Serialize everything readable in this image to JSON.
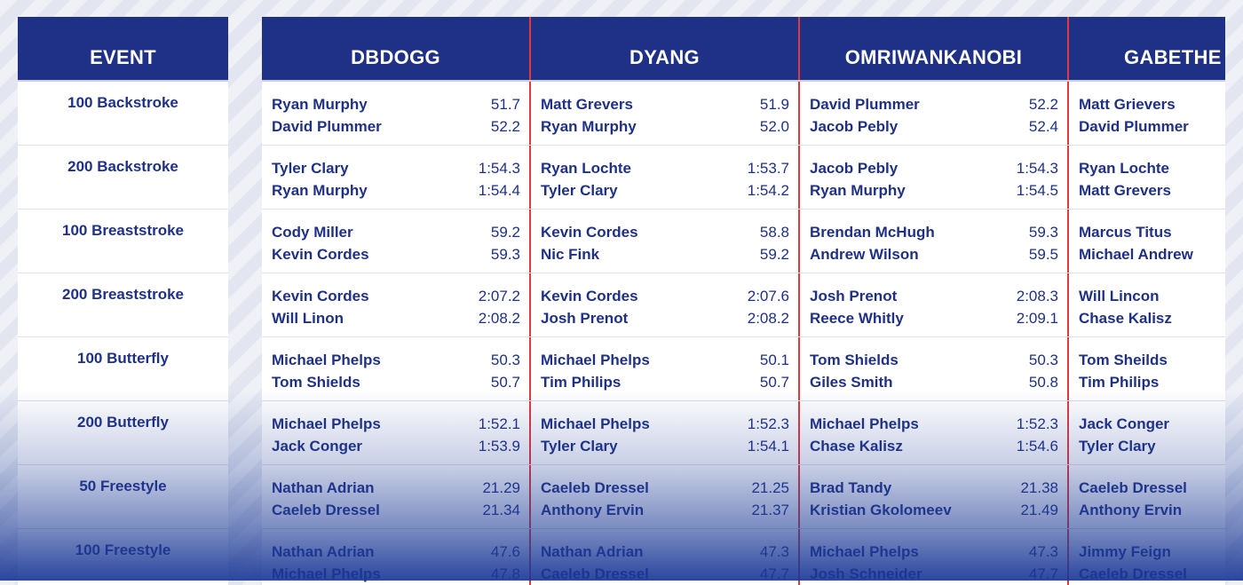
{
  "header": {
    "event_label": "EVENT"
  },
  "players": [
    "DBDOGG",
    "DYANG",
    "OMRIWANKANOBI",
    "GABETHE"
  ],
  "events": [
    {
      "name": "100 Backstroke",
      "picks": [
        [
          {
            "name": "Ryan Murphy",
            "time": "51.7"
          },
          {
            "name": "David Plummer",
            "time": "52.2"
          }
        ],
        [
          {
            "name": "Matt Grevers",
            "time": "51.9"
          },
          {
            "name": "Ryan Murphy",
            "time": "52.0"
          }
        ],
        [
          {
            "name": "David Plummer",
            "time": "52.2"
          },
          {
            "name": "Jacob Pebly",
            "time": "52.4"
          }
        ],
        [
          {
            "name": "Matt Grievers",
            "time": ""
          },
          {
            "name": "David Plummer",
            "time": ""
          }
        ]
      ]
    },
    {
      "name": "200 Backstroke",
      "picks": [
        [
          {
            "name": "Tyler Clary",
            "time": "1:54.3"
          },
          {
            "name": "Ryan Murphy",
            "time": "1:54.4"
          }
        ],
        [
          {
            "name": "Ryan Lochte",
            "time": "1:53.7"
          },
          {
            "name": "Tyler Clary",
            "time": "1:54.2"
          }
        ],
        [
          {
            "name": "Jacob Pebly",
            "time": "1:54.3"
          },
          {
            "name": "Ryan Murphy",
            "time": "1:54.5"
          }
        ],
        [
          {
            "name": "Ryan Lochte",
            "time": ""
          },
          {
            "name": "Matt Grevers",
            "time": ""
          }
        ]
      ]
    },
    {
      "name": "100 Breaststroke",
      "picks": [
        [
          {
            "name": "Cody Miller",
            "time": "59.2"
          },
          {
            "name": "Kevin Cordes",
            "time": "59.3"
          }
        ],
        [
          {
            "name": "Kevin Cordes",
            "time": "58.8"
          },
          {
            "name": "Nic Fink",
            "time": "59.2"
          }
        ],
        [
          {
            "name": "Brendan McHugh",
            "time": "59.3"
          },
          {
            "name": "Andrew Wilson",
            "time": "59.5"
          }
        ],
        [
          {
            "name": "Marcus Titus",
            "time": ""
          },
          {
            "name": "Michael Andrew",
            "time": ""
          }
        ]
      ]
    },
    {
      "name": "200 Breaststroke",
      "picks": [
        [
          {
            "name": "Kevin Cordes",
            "time": "2:07.2"
          },
          {
            "name": "Will Linon",
            "time": "2:08.2"
          }
        ],
        [
          {
            "name": "Kevin Cordes",
            "time": "2:07.6"
          },
          {
            "name": "Josh Prenot",
            "time": "2:08.2"
          }
        ],
        [
          {
            "name": "Josh Prenot",
            "time": "2:08.3"
          },
          {
            "name": "Reece Whitly",
            "time": "2:09.1"
          }
        ],
        [
          {
            "name": "Will Lincon",
            "time": ""
          },
          {
            "name": "Chase Kalisz",
            "time": ""
          }
        ]
      ]
    },
    {
      "name": "100 Butterfly",
      "picks": [
        [
          {
            "name": "Michael Phelps",
            "time": "50.3"
          },
          {
            "name": "Tom Shields",
            "time": "50.7"
          }
        ],
        [
          {
            "name": "Michael Phelps",
            "time": "50.1"
          },
          {
            "name": "Tim Philips",
            "time": "50.7"
          }
        ],
        [
          {
            "name": "Tom Shields",
            "time": "50.3"
          },
          {
            "name": "Giles Smith",
            "time": "50.8"
          }
        ],
        [
          {
            "name": "Tom Sheilds",
            "time": ""
          },
          {
            "name": "Tim Philips",
            "time": ""
          }
        ]
      ]
    },
    {
      "name": "200 Butterfly",
      "picks": [
        [
          {
            "name": "Michael Phelps",
            "time": "1:52.1"
          },
          {
            "name": "Jack Conger",
            "time": "1:53.9"
          }
        ],
        [
          {
            "name": "Michael Phelps",
            "time": "1:52.3"
          },
          {
            "name": "Tyler Clary",
            "time": "1:54.1"
          }
        ],
        [
          {
            "name": "Michael Phelps",
            "time": "1:52.3"
          },
          {
            "name": "Chase Kalisz",
            "time": "1:54.6"
          }
        ],
        [
          {
            "name": "Jack Conger",
            "time": ""
          },
          {
            "name": "Tyler Clary",
            "time": ""
          }
        ]
      ]
    },
    {
      "name": "50 Freestyle",
      "picks": [
        [
          {
            "name": "Nathan Adrian",
            "time": "21.29"
          },
          {
            "name": "Caeleb Dressel",
            "time": "21.34"
          }
        ],
        [
          {
            "name": "Caeleb Dressel",
            "time": "21.25"
          },
          {
            "name": "Anthony Ervin",
            "time": "21.37"
          }
        ],
        [
          {
            "name": "Brad Tandy",
            "time": "21.38"
          },
          {
            "name": "Kristian Gkolomeev",
            "time": "21.49"
          }
        ],
        [
          {
            "name": "Caeleb Dressel",
            "time": ""
          },
          {
            "name": "Anthony Ervin",
            "time": ""
          }
        ]
      ]
    },
    {
      "name": "100 Freestyle",
      "picks": [
        [
          {
            "name": "Nathan Adrian",
            "time": "47.6"
          },
          {
            "name": "Michael Phelps",
            "time": "47.8"
          }
        ],
        [
          {
            "name": "Nathan Adrian",
            "time": "47.3"
          },
          {
            "name": "Caeleb Dressel",
            "time": "47.7"
          }
        ],
        [
          {
            "name": "Michael Phelps",
            "time": "47.3"
          },
          {
            "name": "Josh Schneider",
            "time": "47.7"
          }
        ],
        [
          {
            "name": "Jimmy Feign",
            "time": ""
          },
          {
            "name": "Caeleb Dressel",
            "time": ""
          }
        ]
      ]
    }
  ],
  "colors": {
    "header_bg": "#1f3187",
    "text": "#1f3187",
    "divider": "#e03a3a"
  }
}
